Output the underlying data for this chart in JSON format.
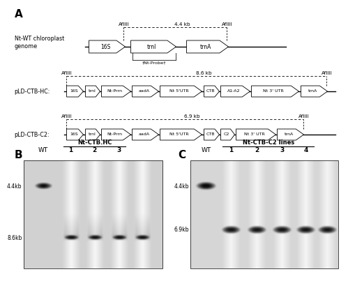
{
  "panel_A_label": "A",
  "panel_B_label": "B",
  "panel_C_label": "C",
  "wt_label": "Nt-WT chloroplast\ngenome",
  "wt_genes": [
    "16S",
    "trnI",
    "trnA"
  ],
  "wt_distance": "4.4 kb",
  "wt_probe": "†Nt-Probe†",
  "hc_label": "pLD-CTB-HC:",
  "hc_genes": [
    "16S",
    "trnI",
    "Nt-Prrn",
    "aadA",
    "Nt 5'UTR",
    "CTB",
    "A1-A2",
    "Nt 3' UTR",
    "trnA"
  ],
  "hc_distance": "8.6 kb",
  "c2_label": "pLD-CTB-C2:",
  "c2_genes": [
    "16S",
    "trnI",
    "Nt-Prrn",
    "aadA",
    "Nt 5'UTR",
    "CTB",
    "C2",
    "Nt 3' UTR",
    "trnA"
  ],
  "c2_distance": "6.9 kb",
  "gel_B_title": "Nt-CTB.HC",
  "gel_B_lanes": [
    "WT",
    "1",
    "2",
    "3"
  ],
  "gel_B_label_86": "8.6kb",
  "gel_B_label_44": "4.4kb",
  "gel_C_title": "Nt-CTB-C2 lines",
  "gel_C_lanes": [
    "WT",
    "1",
    "2",
    "3",
    "4"
  ],
  "gel_C_label_69": "6.9kb",
  "gel_C_label_44": "4.4kb",
  "afliii": "AfIIII",
  "bg_color": "#ffffff"
}
